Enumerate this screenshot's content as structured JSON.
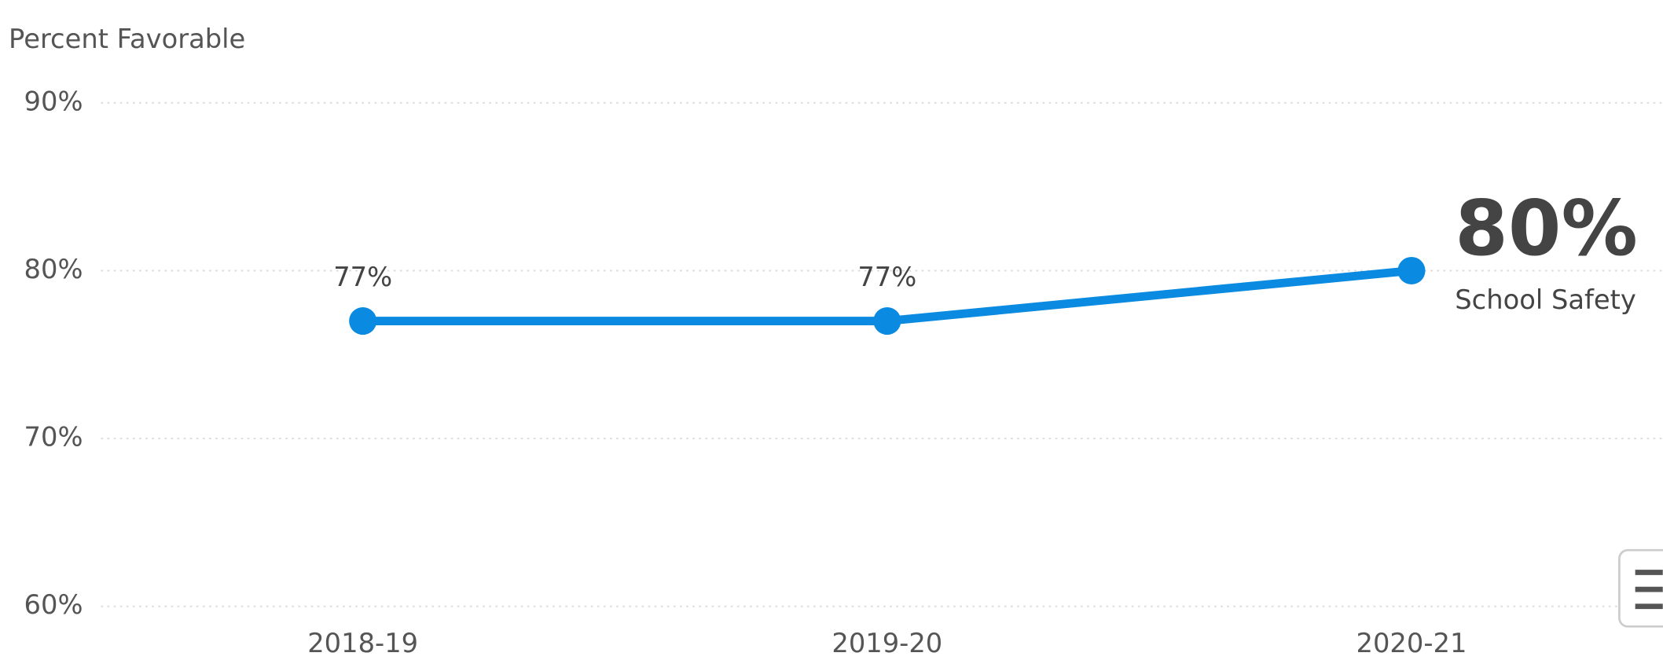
{
  "chart_data": {
    "type": "line",
    "y_label": "Percent Favorable",
    "categories": [
      "2018-19",
      "2019-20",
      "2020-21"
    ],
    "series": [
      {
        "name": "School Safety",
        "color": "#0a8ae0",
        "values": [
          77,
          77,
          80
        ],
        "value_labels": [
          "77%",
          "77%",
          "80%"
        ]
      }
    ],
    "ylim": [
      60,
      90
    ],
    "yticks": [
      {
        "value": 60,
        "label": "60%"
      },
      {
        "value": 70,
        "label": "70%"
      },
      {
        "value": 80,
        "label": "80%"
      },
      {
        "value": 90,
        "label": "90%"
      }
    ],
    "grid": true
  }
}
